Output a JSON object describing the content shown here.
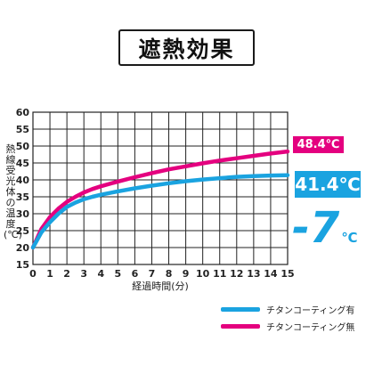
{
  "title": "遮熱効果",
  "badges": {
    "pink": "48.4℃",
    "blue": "41.4℃"
  },
  "difference": {
    "value": "-7",
    "unit": "℃"
  },
  "colors": {
    "coated": "#1aa3e0",
    "uncoated": "#e4007f"
  },
  "chart_data": {
    "type": "line",
    "title": "遮熱効果",
    "xlabel": "経過時間(分)",
    "ylabel": "熱線受光体の温度(℃)",
    "xlim": [
      0,
      15
    ],
    "ylim": [
      15,
      60
    ],
    "xticks": [
      0,
      1,
      2,
      3,
      4,
      5,
      6,
      7,
      8,
      9,
      10,
      11,
      12,
      13,
      14,
      15
    ],
    "yticks": [
      15,
      20,
      25,
      30,
      35,
      40,
      45,
      50,
      55,
      60
    ],
    "grid": true,
    "legend_position": "bottom-right",
    "x": [
      0,
      0.5,
      1,
      1.5,
      2,
      2.5,
      3,
      3.5,
      4,
      5,
      6,
      7,
      8,
      9,
      10,
      11,
      12,
      13,
      14,
      15
    ],
    "series": [
      {
        "name": "チタンコーティング有",
        "color": "#1aa3e0",
        "values": [
          20,
          24.5,
          27.5,
          30,
          32,
          33.3,
          34.3,
          35,
          35.6,
          36.6,
          37.5,
          38.3,
          39,
          39.6,
          40.1,
          40.5,
          40.9,
          41.1,
          41.3,
          41.4
        ]
      },
      {
        "name": "チタンコーティング無",
        "color": "#e4007f",
        "values": [
          20,
          25.5,
          29,
          31.5,
          33.5,
          35,
          36.3,
          37.3,
          38.1,
          39.5,
          40.8,
          42,
          43.1,
          44,
          44.9,
          45.7,
          46.4,
          47.1,
          47.8,
          48.4
        ]
      }
    ]
  }
}
